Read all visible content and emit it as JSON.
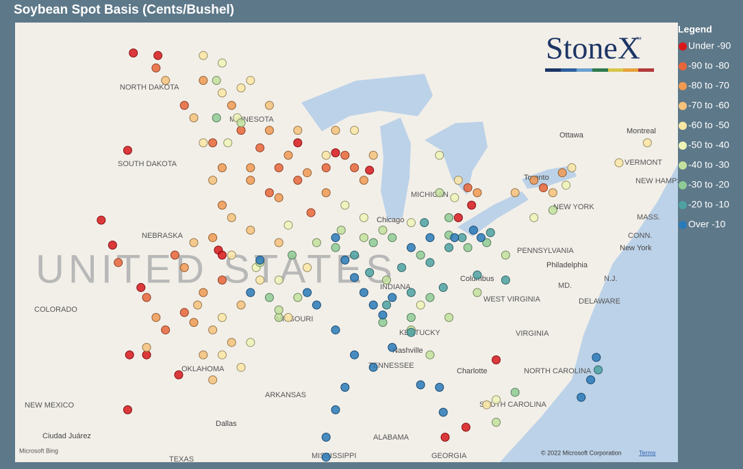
{
  "chart_data": {
    "type": "scatter",
    "title": "Soybean Spot Basis (Cents/Bushel)",
    "legend_title": "Legend",
    "logo": "StoneX",
    "logo_tm": "™",
    "attribution": "© 2022 Microsoft Corporation",
    "terms": "Terms",
    "bing": "Microsoft Bing",
    "country_label": "UNITED STATES",
    "xlim": [
      -107.46,
      -72.38
    ],
    "ylim": [
      32.2,
      49.82
    ],
    "series": [
      {
        "name": "Under -90",
        "color": "#d7191c",
        "lon": [
          -101.2,
          -99.9,
          -101.5,
          -102.9,
          -96.7,
          -96.5,
          -100.8,
          -101.4,
          -100.5,
          -98.8,
          -101.5,
          -92.5,
          -90.5,
          -88.7,
          -84.0,
          -83.3,
          -82.0,
          -84.7,
          -83.6,
          -102.3
        ],
        "lat": [
          48.6,
          48.5,
          44.7,
          41.9,
          40.7,
          40.5,
          39.2,
          36.5,
          36.5,
          35.7,
          34.3,
          45.0,
          44.6,
          43.9,
          42.0,
          42.5,
          36.3,
          33.2,
          33.6,
          40.9
        ]
      },
      {
        "name": "-90 to -80",
        "color": "#e8663a",
        "lon": [
          -100,
          -98.5,
          -97,
          -95.5,
          -94.5,
          -93.5,
          -92.5,
          -94,
          -91,
          -90,
          -99,
          -100.5,
          -98.5,
          -99.5,
          -96.5,
          -91.8,
          -89.5,
          -83.5,
          -79.5,
          -102
        ],
        "lat": [
          48,
          46.5,
          45,
          45.5,
          44.8,
          44,
          43.5,
          43,
          44,
          44.5,
          40.5,
          38.8,
          38.2,
          37.5,
          39.5,
          42.2,
          44,
          43.2,
          43.2,
          40.2
        ]
      },
      {
        "name": "-80 to -70",
        "color": "#f09a52",
        "lon": [
          -97.5,
          -96,
          -96.5,
          -95,
          -94,
          -93,
          -92,
          -95,
          -97,
          -98.5,
          -97.5,
          -98,
          -96.5,
          -100,
          -93.5,
          -91,
          -89,
          -83,
          -80,
          -78.5
        ],
        "lat": [
          47.5,
          46.5,
          44,
          44,
          45.5,
          44.5,
          43.8,
          43.5,
          41.2,
          40,
          39,
          37.8,
          42.5,
          38,
          42.8,
          43,
          43.5,
          43,
          43.5,
          43.8
        ]
      },
      {
        "name": "-70 to -60",
        "color": "#f6c27b",
        "lon": [
          -99.5,
          -98,
          -97,
          -96,
          -98,
          -97.8,
          -97,
          -97.5,
          -96,
          -95.5,
          -97,
          -94,
          -92.5,
          -90.5,
          -88.5,
          -95,
          -93.5,
          -81,
          -79,
          -100.5
        ],
        "lat": [
          47.5,
          46,
          43.5,
          42,
          41,
          38.5,
          37.5,
          36.5,
          37,
          38.5,
          35.5,
          46.5,
          45.5,
          45.5,
          44.5,
          41.5,
          41,
          43,
          43,
          36.8
        ]
      },
      {
        "name": "-60 to -50",
        "color": "#fbe6a4",
        "lon": [
          -97.5,
          -96.5,
          -95.5,
          -97.5,
          -96,
          -96.5,
          -95.5,
          -94.5,
          -92,
          -95,
          -91,
          -89.5,
          -93,
          -84,
          -78,
          -74,
          -75.5,
          -82.5,
          -96.5
        ],
        "lat": [
          48.5,
          47,
          47.2,
          45,
          40.5,
          36.5,
          36,
          39.5,
          40,
          47.5,
          44.5,
          45.5,
          38,
          43.5,
          44,
          45,
          44.2,
          34.5,
          38
        ]
      },
      {
        "name": "-50 to -40",
        "color": "#eef3b6",
        "lon": [
          -96.5,
          -95.7,
          -96.2,
          -94.7,
          -93.5,
          -90,
          -89,
          -86.5,
          -86,
          -82,
          -85,
          -84.2,
          -80,
          -95,
          -93,
          -78.3
        ],
        "lat": [
          48.2,
          46,
          45,
          40,
          39.5,
          42.5,
          42,
          41.8,
          38.5,
          34.7,
          44.5,
          42.8,
          42,
          37,
          41.7,
          43.3
        ]
      },
      {
        "name": "-40 to -30",
        "color": "#c3e19d",
        "lon": [
          -96.8,
          -95.5,
          -94.5,
          -93.5,
          -92.5,
          -90.2,
          -89,
          -87.8,
          -86.5,
          -85.5,
          -84.5,
          -83,
          -81.5,
          -85,
          -79,
          -82,
          -93.5,
          -91.5,
          -88
        ],
        "lat": [
          47.5,
          45.8,
          40.2,
          38,
          38.8,
          41.5,
          41.2,
          39.5,
          37.5,
          36.5,
          38,
          39,
          40.5,
          43,
          42.3,
          33.8,
          38.3,
          41,
          41.5
        ]
      },
      {
        "name": "-30 to -20",
        "color": "#8fcb94",
        "lon": [
          -96.8,
          -94,
          -92.8,
          -90.5,
          -88.5,
          -87.5,
          -86,
          -84.5,
          -83.5,
          -82.5,
          -85.5,
          -84.5,
          -86.5,
          -88,
          -81
        ],
        "lat": [
          46,
          38.8,
          40.5,
          40.8,
          41,
          41.2,
          40.5,
          41.3,
          40.8,
          41,
          38.8,
          42,
          38,
          37.8,
          35
        ]
      },
      {
        "name": "-20 to -10",
        "color": "#4ea2a2",
        "lon": [
          -89.5,
          -88.7,
          -87,
          -86.5,
          -85.5,
          -84.5,
          -83.8,
          -82.3,
          -83,
          -86.5,
          -87.8,
          -85.8,
          -76.6,
          -81.5,
          -84.8
        ],
        "lat": [
          40.5,
          39.8,
          40,
          39,
          40.2,
          40.8,
          41.2,
          41.4,
          39.7,
          37.4,
          38.5,
          41.8,
          35.9,
          39.5,
          39.2
        ]
      },
      {
        "name": "Over -10",
        "color": "#2a7ab8",
        "lon": [
          -90.5,
          -90,
          -89.5,
          -89,
          -88.5,
          -88,
          -87.5,
          -86.5,
          -85.5,
          -84.2,
          -83.2,
          -82.8,
          -91.5,
          -92,
          -90.5,
          -89.5,
          -90,
          -90.5,
          -91,
          -91,
          -88.5,
          -87.5,
          -86,
          -85,
          -84.8,
          -77,
          -77.5,
          -76.7,
          -94.5,
          -95
        ],
        "lat": [
          41.2,
          40.3,
          39.6,
          39,
          38.5,
          38.1,
          38.8,
          40.8,
          41.2,
          41.2,
          41.5,
          41.2,
          38.5,
          39,
          37.5,
          36.5,
          35.2,
          34.3,
          33.2,
          32.4,
          36,
          36.8,
          35.3,
          35.2,
          34.2,
          35.5,
          34.8,
          36.4,
          40.3,
          39
        ]
      }
    ],
    "map_labels": [
      "NORTH DAKOTA",
      "SOUTH DAKOTA",
      "MINNESOTA",
      "NEBRASKA",
      "COLORADO",
      "MISSOURI",
      "KENTUCKY",
      "TENNESSEE",
      "ARKANSAS",
      "OKLAHOMA",
      "NEW MEXICO",
      "ALABAMA",
      "MISSISSIPPI",
      "GEORGIA",
      "TEXAS",
      "VIRGINIA",
      "WEST VIRGINIA",
      "PENNSYLVANIA",
      "NEW YORK",
      "VERMONT",
      "NEW HAMPSHIRE",
      "NORTH CAROLINA",
      "SOUTH CAROLINA",
      "MICHIGAN",
      "INDIANA",
      "MASS.",
      "CONN.",
      "N.J.",
      "MD.",
      "DELAWARE"
    ],
    "city_labels": [
      "Chicago",
      "Columbus",
      "Nashville",
      "Charlotte",
      "Philadelphia",
      "New York",
      "Ottawa",
      "Montreal",
      "Toronto",
      "Dallas",
      "Ciudad Juárez"
    ]
  }
}
